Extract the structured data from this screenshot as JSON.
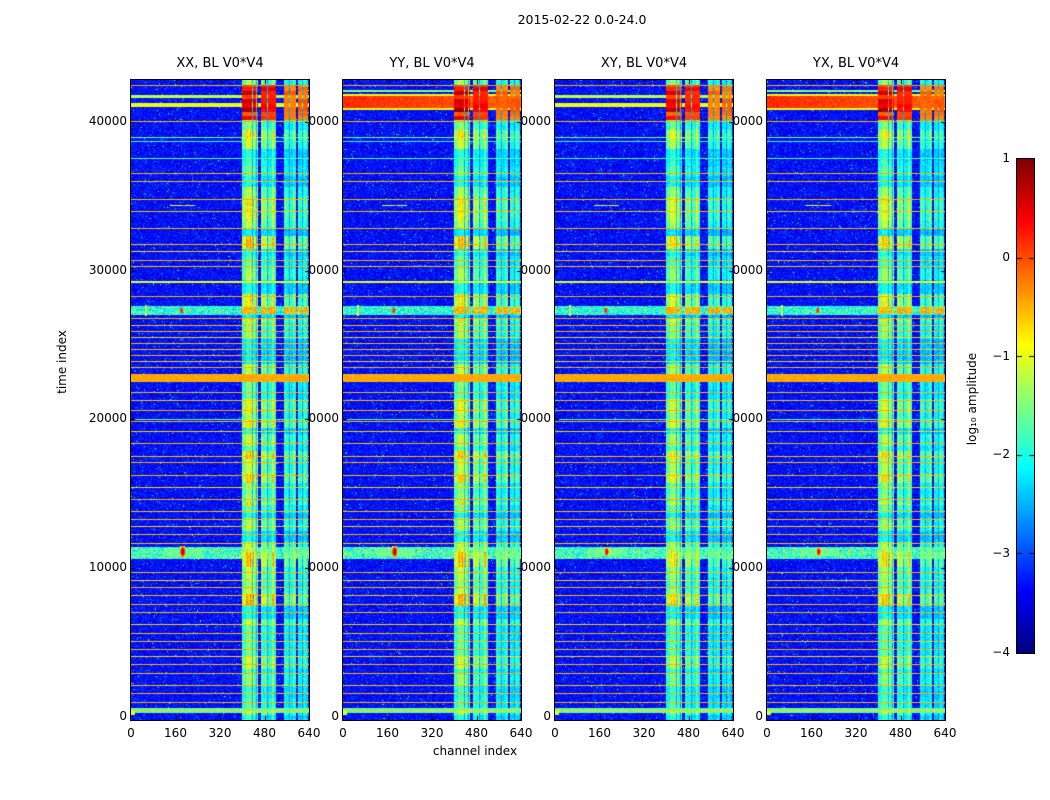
{
  "figure": {
    "title": "2015-02-22 0.0-24.0"
  },
  "chart_data": {
    "type": "heatmap",
    "title": "2015-02-22 0.0-24.0",
    "xlabel": "channel index",
    "ylabel": "time index",
    "x_ticks": [
      0,
      160,
      320,
      480,
      640
    ],
    "y_ticks": [
      0,
      10000,
      20000,
      30000,
      40000
    ],
    "x_range": [
      0,
      640
    ],
    "y_range": [
      0,
      43000
    ],
    "panels": [
      {
        "title": "XX, BL V0*V4",
        "top": "lines",
        "band_gain": 1.0,
        "blob_scale": 1.0
      },
      {
        "title": "YY, BL V0*V4",
        "top": "band",
        "band_gain": 1.0,
        "blob_scale": 1.0
      },
      {
        "title": "XY, BL V0*V4",
        "top": "lines",
        "band_gain": 0.9,
        "blob_scale": 0.8
      },
      {
        "title": "YX, BL V0*V4",
        "top": "band",
        "band_gain": 0.95,
        "blob_scale": 0.8
      }
    ],
    "colorbar": {
      "label": "log₁₀ amplitude",
      "tick_labels": [
        "1",
        "0",
        "−1",
        "−2",
        "−3",
        "−4"
      ],
      "tick_values": [
        1,
        0,
        -1,
        -2,
        -3,
        -4
      ],
      "range": [
        -4,
        1
      ],
      "colormap": "jet"
    },
    "background_level": -3.35,
    "vertical_bands": [
      [
        398,
        456,
        1.0
      ],
      [
        468,
        522,
        0.95
      ],
      [
        550,
        594,
        0.63
      ],
      [
        600,
        636,
        0.58
      ]
    ],
    "band_gaps": [
      [
        434,
        437
      ],
      [
        449,
        452
      ],
      [
        490,
        493
      ],
      [
        567,
        570
      ],
      [
        616,
        619
      ]
    ],
    "horizontal_lines": [
      [
        42500,
        -0.5,
        1
      ],
      [
        40050,
        -0.5,
        1
      ],
      [
        39000,
        -1.55,
        1
      ],
      [
        38750,
        -1.9,
        1
      ],
      [
        37600,
        -1.7,
        1
      ],
      [
        36600,
        -0.5,
        1
      ],
      [
        36050,
        -0.55,
        1
      ],
      [
        34800,
        -0.5,
        1
      ],
      [
        34000,
        -0.55,
        1
      ],
      [
        32900,
        -0.5,
        1
      ],
      [
        31800,
        -0.5,
        1
      ],
      [
        31300,
        -0.65,
        1
      ],
      [
        30700,
        -0.5,
        1
      ],
      [
        30300,
        -0.55,
        1
      ],
      [
        29250,
        -1.0,
        2
      ],
      [
        28300,
        -0.5,
        1
      ],
      [
        26800,
        -0.5,
        1
      ],
      [
        26350,
        -0.55,
        1
      ],
      [
        25950,
        -0.5,
        1
      ],
      [
        25550,
        -0.65,
        1
      ],
      [
        25150,
        -0.5,
        1
      ],
      [
        24750,
        -0.55,
        1
      ],
      [
        24350,
        -0.5,
        1
      ],
      [
        23900,
        -0.65,
        1
      ],
      [
        23500,
        -0.5,
        1
      ],
      [
        23050,
        -0.5,
        1
      ],
      [
        22600,
        -0.5,
        1
      ],
      [
        21850,
        -0.5,
        1
      ],
      [
        21300,
        -0.55,
        1
      ],
      [
        20650,
        -0.5,
        1
      ],
      [
        20000,
        -1.7,
        1
      ],
      [
        19850,
        -0.5,
        1
      ],
      [
        19200,
        -0.65,
        1
      ],
      [
        18400,
        -0.5,
        1
      ],
      [
        17550,
        -0.55,
        1
      ],
      [
        17150,
        -0.5,
        1
      ],
      [
        16250,
        -0.5,
        1
      ],
      [
        15450,
        -0.65,
        1
      ],
      [
        14650,
        -0.5,
        1
      ],
      [
        13850,
        -0.55,
        1
      ],
      [
        13300,
        -0.5,
        1
      ],
      [
        12800,
        -0.65,
        1
      ],
      [
        12250,
        -0.5,
        1
      ],
      [
        11700,
        -0.55,
        1
      ],
      [
        9750,
        -0.5,
        1
      ],
      [
        9200,
        -0.65,
        1
      ],
      [
        8700,
        -0.5,
        1
      ],
      [
        8150,
        -0.55,
        1
      ],
      [
        7600,
        -0.5,
        1
      ],
      [
        7050,
        -0.5,
        1
      ],
      [
        6200,
        -0.65,
        1
      ],
      [
        5650,
        -0.5,
        1
      ],
      [
        5100,
        -0.55,
        1
      ],
      [
        4550,
        -0.5,
        1
      ],
      [
        4050,
        -0.65,
        1
      ],
      [
        3500,
        -0.5,
        1
      ],
      [
        2950,
        -0.5,
        1
      ],
      [
        2100,
        -0.55,
        1
      ],
      [
        1550,
        -0.5,
        1
      ],
      [
        1000,
        -0.5,
        1
      ],
      [
        450,
        -0.65,
        1
      ]
    ],
    "thick_band": {
      "t": [
        22620,
        23020
      ],
      "v": -0.45
    },
    "bottom_band": {
      "t": [
        250,
        620
      ],
      "v": -1.8
    },
    "corner_mark": {
      "ch": [
        0,
        13
      ],
      "t": [
        120,
        470
      ],
      "v": -1.05
    },
    "red_blocks": {
      "t": [
        40150,
        42500
      ],
      "row_step": 280
    },
    "top_band": {
      "t": [
        41000,
        41750
      ],
      "v": 0.18
    },
    "top_lines": [
      [
        41730,
        -1.2
      ],
      [
        41200,
        -0.95
      ]
    ],
    "event_34k": {
      "dash_ch": [
        140,
        230
      ],
      "t": [
        34350,
        34470
      ],
      "dash_v": -1.0,
      "dot_ch": [
        184,
        194
      ],
      "dot_v": -0.35
    },
    "event_27k": {
      "band_t": [
        27080,
        27620
      ],
      "dot_ch": [
        177,
        188
      ],
      "dot_t": [
        27180,
        27500
      ],
      "dot_v": 0.45,
      "spike_ch": [
        52,
        58
      ],
      "spike_t": [
        26950,
        27720
      ],
      "spike_v": -1.15
    },
    "event_11k": {
      "band_t": [
        10650,
        11450
      ],
      "blob_ch": 186,
      "blob_t": 11120,
      "blob_v": 0.72,
      "spike_chs": [
        300,
        420,
        600
      ],
      "spike_t": [
        11050,
        11300
      ],
      "spike_v": -0.5
    }
  }
}
